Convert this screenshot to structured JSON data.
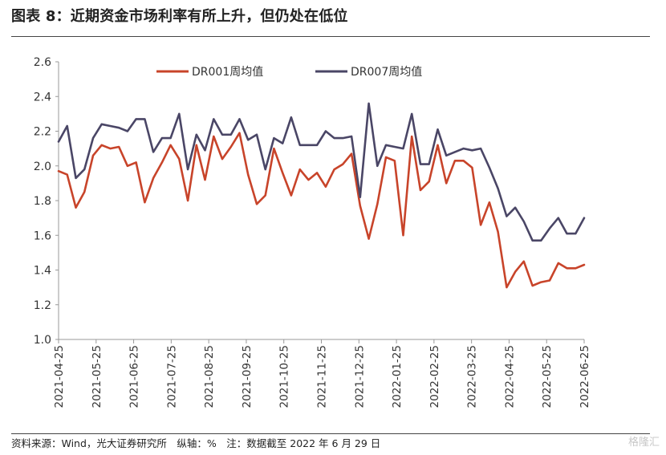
{
  "header": {
    "title": "图表 8：近期资金市场利率有所上升，但仍处在低位"
  },
  "footer": {
    "source": "资料来源：Wind，光大证券研究所　纵轴：%　注：数据截至 2022 年 6 月 29 日",
    "watermark": "格隆汇"
  },
  "chart_data": {
    "type": "line",
    "title": "",
    "xlabel": "",
    "ylabel": "",
    "unit": "%",
    "ylim": [
      1.0,
      2.6
    ],
    "yticks": [
      "1.0",
      "1.2",
      "1.4",
      "1.6",
      "1.8",
      "2.0",
      "2.2",
      "2.4",
      "2.6"
    ],
    "xtick_labels": [
      "2021-04-25",
      "2021-05-25",
      "2021-06-25",
      "2021-07-25",
      "2021-08-25",
      "2021-09-25",
      "2021-10-25",
      "2021-11-25",
      "2021-12-25",
      "2022-01-25",
      "2022-02-25",
      "2022-03-25",
      "2022-04-25",
      "2022-05-25",
      "2022-06-25"
    ],
    "grid": false,
    "legend_position": "top-center",
    "series": [
      {
        "name": "DR001周均值",
        "color": "#c8442a",
        "values": [
          1.97,
          1.95,
          1.76,
          1.85,
          2.06,
          2.12,
          2.1,
          2.11,
          2.0,
          2.02,
          1.79,
          1.93,
          2.02,
          2.12,
          2.04,
          1.8,
          2.12,
          1.92,
          2.17,
          2.04,
          2.11,
          2.19,
          1.95,
          1.78,
          1.83,
          2.1,
          1.96,
          1.83,
          1.98,
          1.92,
          1.96,
          1.88,
          1.98,
          2.01,
          2.07,
          1.77,
          1.58,
          1.78,
          2.05,
          2.03,
          1.6,
          2.17,
          1.86,
          1.91,
          2.12,
          1.9,
          2.03,
          2.03,
          1.99,
          1.66,
          1.79,
          1.62,
          1.3,
          1.39,
          1.45,
          1.31,
          1.33,
          1.34,
          1.44,
          1.41,
          1.41,
          1.43
        ]
      },
      {
        "name": "DR007周均值",
        "color": "#4a4666",
        "values": [
          2.14,
          2.23,
          1.93,
          1.98,
          2.16,
          2.24,
          2.23,
          2.22,
          2.2,
          2.27,
          2.27,
          2.08,
          2.16,
          2.16,
          2.3,
          1.98,
          2.18,
          2.09,
          2.27,
          2.18,
          2.18,
          2.27,
          2.15,
          2.18,
          1.98,
          2.16,
          2.13,
          2.28,
          2.12,
          2.12,
          2.12,
          2.2,
          2.16,
          2.16,
          2.17,
          1.82,
          2.36,
          2.0,
          2.12,
          2.11,
          2.1,
          2.3,
          2.01,
          2.01,
          2.21,
          2.06,
          2.08,
          2.1,
          2.09,
          2.1,
          1.99,
          1.87,
          1.71,
          1.76,
          1.68,
          1.57,
          1.57,
          1.64,
          1.7,
          1.61,
          1.61,
          1.7
        ]
      }
    ]
  }
}
